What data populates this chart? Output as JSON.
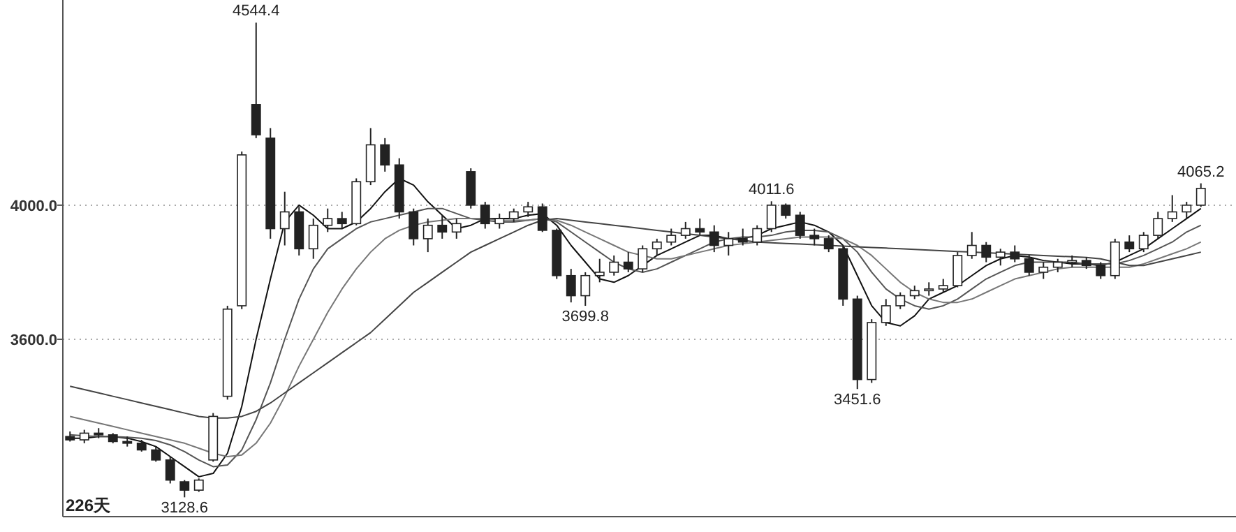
{
  "chart_data": {
    "type": "candlestick",
    "categories": [
      null,
      null,
      null,
      null,
      null,
      null,
      null,
      null,
      null,
      null,
      null,
      null,
      null,
      null,
      null,
      null,
      null,
      null,
      null,
      null,
      null,
      null,
      null,
      null,
      null,
      null,
      null,
      null,
      null,
      null,
      null,
      null,
      null,
      null,
      null,
      null,
      null,
      null,
      null,
      null,
      null,
      null,
      null,
      null,
      null,
      null,
      null,
      null,
      null,
      null,
      null,
      null,
      null,
      null,
      null,
      null,
      null,
      null,
      null,
      null,
      null,
      null,
      null,
      null,
      null,
      null,
      null,
      null,
      null,
      null,
      null,
      null,
      null,
      null,
      null,
      null,
      null,
      null,
      null,
      null
    ],
    "ohlc": [
      [
        3310,
        3325,
        3295,
        3300
      ],
      [
        3300,
        3330,
        3290,
        3320
      ],
      [
        3320,
        3335,
        3305,
        3315
      ],
      [
        3315,
        3320,
        3290,
        3295
      ],
      [
        3295,
        3310,
        3280,
        3290
      ],
      [
        3290,
        3300,
        3265,
        3270
      ],
      [
        3270,
        3280,
        3235,
        3240
      ],
      [
        3240,
        3250,
        3170,
        3180
      ],
      [
        3175,
        3180,
        3128.6,
        3150
      ],
      [
        3150,
        3185,
        3145,
        3180
      ],
      [
        3240,
        3380,
        3235,
        3370
      ],
      [
        3430,
        3700,
        3420,
        3690
      ],
      [
        3700,
        4160,
        3690,
        4150
      ],
      [
        4300,
        4544.4,
        4200,
        4210
      ],
      [
        4200,
        4230,
        3900,
        3930
      ],
      [
        3930,
        4040,
        3880,
        3980
      ],
      [
        3980,
        3995,
        3850,
        3870
      ],
      [
        3870,
        3960,
        3840,
        3940
      ],
      [
        3940,
        3990,
        3920,
        3960
      ],
      [
        3960,
        3980,
        3930,
        3945
      ],
      [
        3945,
        4080,
        3940,
        4070
      ],
      [
        4070,
        4230,
        4060,
        4180
      ],
      [
        4180,
        4200,
        4100,
        4120
      ],
      [
        4120,
        4140,
        3960,
        3980
      ],
      [
        3980,
        3990,
        3880,
        3900
      ],
      [
        3900,
        3960,
        3860,
        3940
      ],
      [
        3940,
        3970,
        3900,
        3920
      ],
      [
        3920,
        3960,
        3900,
        3945
      ],
      [
        4100,
        4110,
        3990,
        4000
      ],
      [
        4000,
        4010,
        3930,
        3945
      ],
      [
        3945,
        3975,
        3930,
        3960
      ],
      [
        3960,
        3990,
        3950,
        3980
      ],
      [
        3980,
        4010,
        3965,
        3995
      ],
      [
        3995,
        4005,
        3920,
        3925
      ],
      [
        3925,
        3930,
        3780,
        3790
      ],
      [
        3790,
        3810,
        3710,
        3730
      ],
      [
        3730,
        3800,
        3699.8,
        3790
      ],
      [
        3790,
        3840,
        3770,
        3800
      ],
      [
        3800,
        3850,
        3790,
        3830
      ],
      [
        3830,
        3860,
        3800,
        3810
      ],
      [
        3810,
        3880,
        3800,
        3870
      ],
      [
        3870,
        3900,
        3850,
        3890
      ],
      [
        3890,
        3930,
        3880,
        3910
      ],
      [
        3910,
        3950,
        3900,
        3930
      ],
      [
        3930,
        3960,
        3910,
        3920
      ],
      [
        3920,
        3940,
        3860,
        3880
      ],
      [
        3880,
        3920,
        3850,
        3900
      ],
      [
        3900,
        3930,
        3880,
        3890
      ],
      [
        3890,
        3940,
        3880,
        3930
      ],
      [
        3930,
        4011.6,
        3920,
        4000
      ],
      [
        4000,
        4005,
        3960,
        3970
      ],
      [
        3970,
        3980,
        3900,
        3910
      ],
      [
        3910,
        3930,
        3880,
        3900
      ],
      [
        3900,
        3910,
        3860,
        3870
      ],
      [
        3870,
        3880,
        3700,
        3720
      ],
      [
        3720,
        3730,
        3451.6,
        3480
      ],
      [
        3480,
        3660,
        3470,
        3650
      ],
      [
        3650,
        3720,
        3640,
        3700
      ],
      [
        3700,
        3740,
        3690,
        3730
      ],
      [
        3730,
        3760,
        3720,
        3745
      ],
      [
        3745,
        3770,
        3730,
        3750
      ],
      [
        3750,
        3780,
        3740,
        3760
      ],
      [
        3760,
        3860,
        3755,
        3850
      ],
      [
        3850,
        3920,
        3840,
        3880
      ],
      [
        3880,
        3890,
        3830,
        3845
      ],
      [
        3845,
        3870,
        3820,
        3860
      ],
      [
        3860,
        3880,
        3830,
        3840
      ],
      [
        3840,
        3850,
        3790,
        3800
      ],
      [
        3800,
        3830,
        3780,
        3815
      ],
      [
        3815,
        3840,
        3800,
        3830
      ],
      [
        3830,
        3850,
        3815,
        3835
      ],
      [
        3835,
        3845,
        3810,
        3820
      ],
      [
        3820,
        3830,
        3780,
        3790
      ],
      [
        3790,
        3900,
        3780,
        3890
      ],
      [
        3890,
        3910,
        3860,
        3870
      ],
      [
        3870,
        3920,
        3860,
        3910
      ],
      [
        3910,
        3980,
        3900,
        3960
      ],
      [
        3960,
        4030,
        3950,
        3980
      ],
      [
        3980,
        4010,
        3960,
        4000
      ],
      [
        4000,
        4065.2,
        3995,
        4050
      ]
    ],
    "series": [
      {
        "type": "line",
        "color": "#111111",
        "values": [
          3305,
          3305,
          3310,
          3310,
          3305,
          3295,
          3280,
          3250,
          3220,
          3190,
          3200,
          3260,
          3400,
          3600,
          3780,
          3950,
          4000,
          3970,
          3930,
          3930,
          3950,
          3990,
          4040,
          4080,
          4060,
          4010,
          3970,
          3930,
          3940,
          3960,
          3960,
          3960,
          3970,
          3975,
          3940,
          3880,
          3830,
          3780,
          3770,
          3790,
          3820,
          3850,
          3870,
          3890,
          3910,
          3910,
          3900,
          3900,
          3910,
          3930,
          3940,
          3950,
          3940,
          3920,
          3880,
          3790,
          3700,
          3650,
          3640,
          3670,
          3720,
          3740,
          3760,
          3790,
          3820,
          3840,
          3850,
          3845,
          3835,
          3830,
          3825,
          3825,
          3820,
          3830,
          3850,
          3870,
          3900,
          3930,
          3960,
          3990
        ]
      },
      {
        "type": "line",
        "color": "#555555",
        "values": [
          3315,
          3312,
          3310,
          3310,
          3308,
          3305,
          3298,
          3285,
          3265,
          3240,
          3220,
          3225,
          3270,
          3360,
          3470,
          3600,
          3720,
          3810,
          3870,
          3900,
          3930,
          3950,
          3960,
          3970,
          3980,
          3990,
          3990,
          3975,
          3960,
          3955,
          3950,
          3950,
          3955,
          3960,
          3950,
          3920,
          3890,
          3860,
          3830,
          3810,
          3800,
          3810,
          3830,
          3850,
          3870,
          3890,
          3900,
          3905,
          3905,
          3910,
          3920,
          3925,
          3925,
          3920,
          3900,
          3860,
          3800,
          3750,
          3720,
          3700,
          3690,
          3700,
          3720,
          3750,
          3780,
          3800,
          3820,
          3830,
          3830,
          3830,
          3830,
          3825,
          3825,
          3825,
          3835,
          3850,
          3870,
          3890,
          3920,
          3940
        ]
      },
      {
        "type": "line",
        "color": "#777777",
        "values": [
          3370,
          3360,
          3350,
          3340,
          3330,
          3320,
          3310,
          3300,
          3290,
          3275,
          3260,
          3250,
          3255,
          3290,
          3350,
          3430,
          3520,
          3600,
          3680,
          3750,
          3810,
          3860,
          3900,
          3925,
          3940,
          3950,
          3955,
          3960,
          3960,
          3960,
          3955,
          3955,
          3955,
          3960,
          3955,
          3940,
          3920,
          3900,
          3880,
          3860,
          3850,
          3840,
          3840,
          3850,
          3860,
          3870,
          3880,
          3885,
          3890,
          3895,
          3900,
          3905,
          3905,
          3905,
          3900,
          3880,
          3850,
          3810,
          3770,
          3740,
          3720,
          3710,
          3710,
          3720,
          3740,
          3760,
          3780,
          3790,
          3800,
          3810,
          3815,
          3815,
          3815,
          3815,
          3815,
          3825,
          3840,
          3855,
          3870,
          3890
        ]
      },
      {
        "type": "line",
        "color": "#444444",
        "values": [
          3460,
          3450,
          3440,
          3430,
          3420,
          3410,
          3400,
          3390,
          3380,
          3370,
          3365,
          3365,
          3370,
          3385,
          3410,
          3440,
          3470,
          3500,
          3530,
          3560,
          3590,
          3620,
          3660,
          3700,
          3740,
          3770,
          3800,
          3830,
          3860,
          3880,
          3900,
          3920,
          3940,
          3955,
          3960,
          3955,
          3950,
          3945,
          3940,
          3935,
          3930,
          3925,
          3920,
          3915,
          3910,
          3905,
          3900,
          3895,
          3890,
          3888,
          3886,
          3884,
          3882,
          3880,
          3878,
          3876,
          3874,
          3872,
          3870,
          3868,
          3866,
          3864,
          3862,
          3860,
          3858,
          3856,
          3854,
          3852,
          3850,
          3848,
          3846,
          3844,
          3840,
          3830,
          3820,
          3820,
          3830,
          3840,
          3850,
          3860
        ]
      }
    ],
    "ylim": [
      3071,
      4612
    ],
    "yticks": [
      {
        "value": 3600,
        "label": "3600.0"
      },
      {
        "value": 4000,
        "label": "4000.0"
      }
    ],
    "grid": "y",
    "annotations": [
      {
        "text": "4544.4",
        "y": 4544.4
      },
      {
        "text": "3128.6",
        "y": 3128.6
      },
      {
        "text": "3699.8",
        "y": 3699.8
      },
      {
        "text": "4011.6",
        "y": 4011.6
      },
      {
        "text": "3451.6",
        "y": 3451.6
      },
      {
        "text": "4065.2",
        "y": 4065.2
      },
      "226天"
    ]
  }
}
